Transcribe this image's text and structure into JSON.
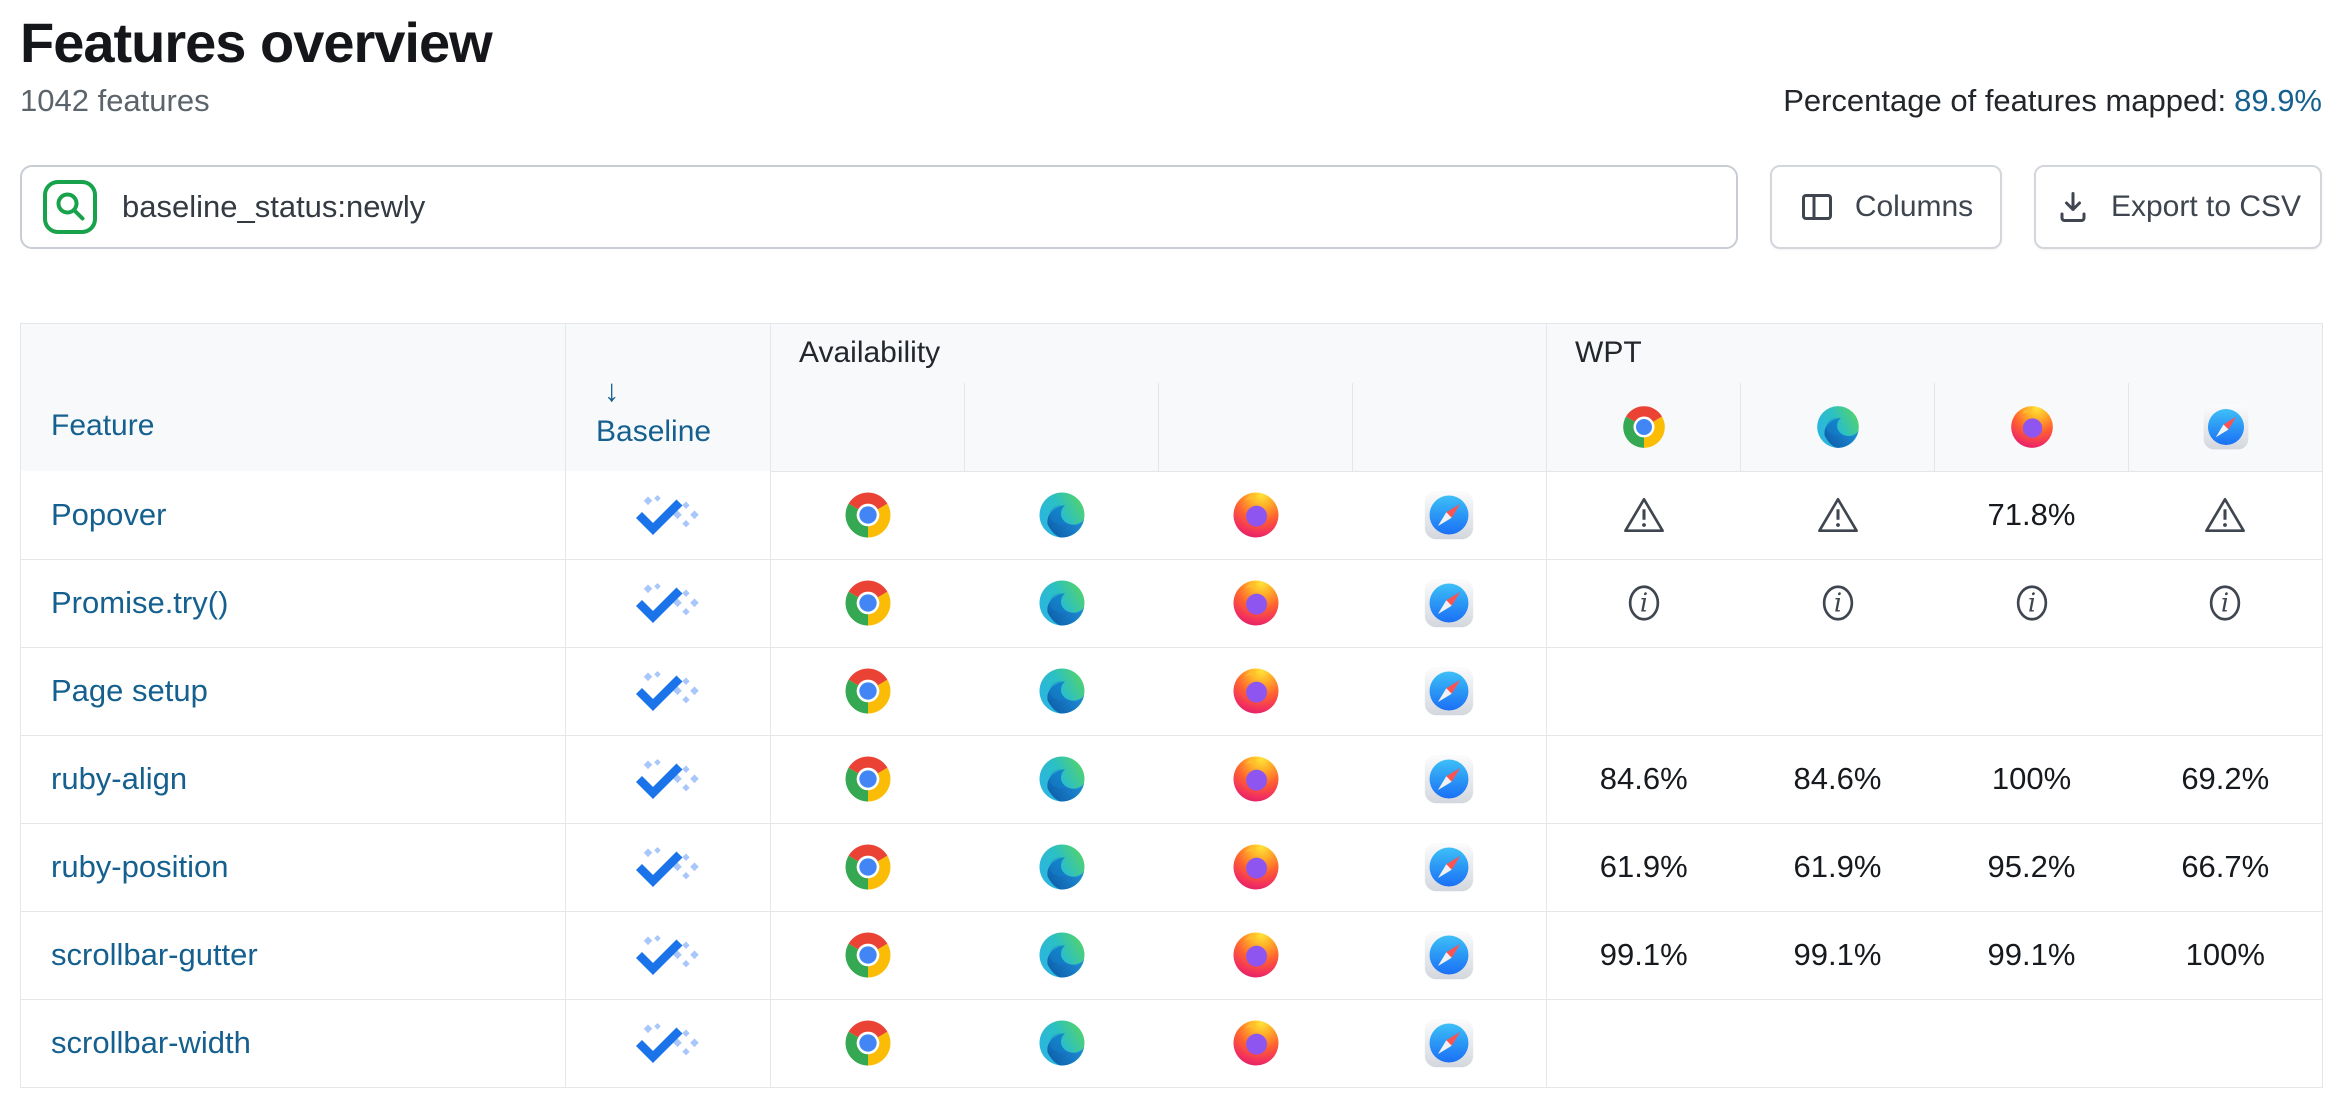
{
  "header": {
    "title": "Features overview",
    "feature_count": "1042 features",
    "mapped_label": "Percentage of features mapped:",
    "mapped_value": "89.9%"
  },
  "toolbar": {
    "search_value": "baseline_status:newly",
    "columns_label": "Columns",
    "export_label": "Export to CSV"
  },
  "table": {
    "feature_header": "Feature",
    "baseline_header": "Baseline",
    "sort_indicator": "↓",
    "groups": {
      "availability": "Availability",
      "wpt": "WPT"
    },
    "browsers": [
      "chrome",
      "edge",
      "firefox",
      "safari"
    ],
    "rows": [
      {
        "feature": "Popover",
        "baseline": "newly",
        "availability": [
          "chrome",
          "edge",
          "firefox",
          "safari"
        ],
        "wpt": [
          "warning",
          "warning",
          "71.8%",
          "warning"
        ]
      },
      {
        "feature": "Promise.try()",
        "baseline": "newly",
        "availability": [
          "chrome",
          "edge",
          "firefox",
          "safari"
        ],
        "wpt": [
          "info",
          "info",
          "info",
          "info"
        ]
      },
      {
        "feature": "Page setup",
        "baseline": "newly",
        "availability": [
          "chrome",
          "edge",
          "firefox",
          "safari"
        ],
        "wpt": [
          "",
          "",
          "",
          ""
        ]
      },
      {
        "feature": "ruby-align",
        "baseline": "newly",
        "availability": [
          "chrome",
          "edge",
          "firefox",
          "safari"
        ],
        "wpt": [
          "84.6%",
          "84.6%",
          "100%",
          "69.2%"
        ]
      },
      {
        "feature": "ruby-position",
        "baseline": "newly",
        "availability": [
          "chrome",
          "edge",
          "firefox",
          "safari"
        ],
        "wpt": [
          "61.9%",
          "61.9%",
          "95.2%",
          "66.7%"
        ]
      },
      {
        "feature": "scrollbar-gutter",
        "baseline": "newly",
        "availability": [
          "chrome",
          "edge",
          "firefox",
          "safari"
        ],
        "wpt": [
          "99.1%",
          "99.1%",
          "99.1%",
          "100%"
        ]
      },
      {
        "feature": "scrollbar-width",
        "baseline": "newly",
        "availability": [
          "chrome",
          "edge",
          "firefox",
          "safari"
        ],
        "wpt": [
          "",
          "",
          "",
          ""
        ]
      }
    ]
  },
  "colors": {
    "link": "#15608f",
    "accent_green": "#18a24b",
    "baseline_check": "#1a73e8",
    "baseline_sparkle": "#a9c7fb",
    "icon_gray": "#3f4650"
  }
}
